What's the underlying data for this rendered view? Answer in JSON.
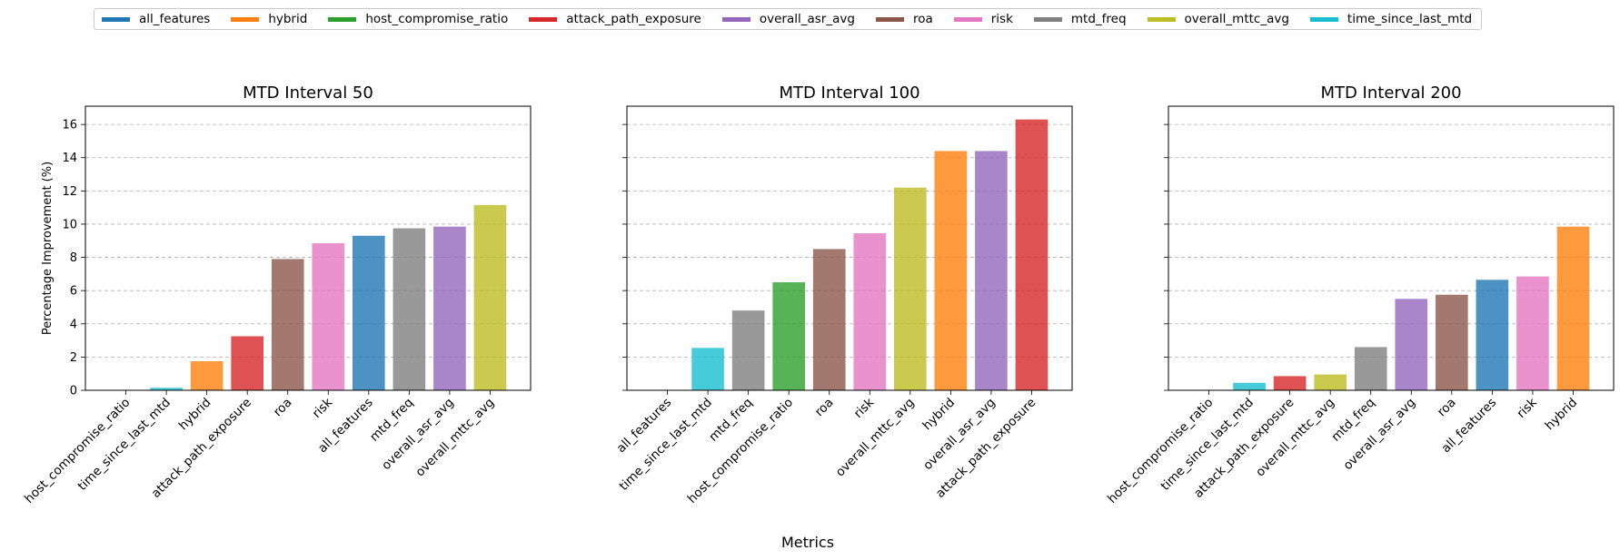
{
  "legend": {
    "items": [
      {
        "label": "all_features",
        "color": "#1f77b4"
      },
      {
        "label": "hybrid",
        "color": "#ff7f0e"
      },
      {
        "label": "host_compromise_ratio",
        "color": "#2ca02c"
      },
      {
        "label": "attack_path_exposure",
        "color": "#d62728"
      },
      {
        "label": "overall_asr_avg",
        "color": "#9467bd"
      },
      {
        "label": "roa",
        "color": "#8c564b"
      },
      {
        "label": "risk",
        "color": "#e377c2"
      },
      {
        "label": "mtd_freq",
        "color": "#7f7f7f"
      },
      {
        "label": "overall_mttc_avg",
        "color": "#bcbd22"
      },
      {
        "label": "time_since_last_mtd",
        "color": "#17becf"
      }
    ]
  },
  "chart_data": [
    {
      "type": "bar",
      "title": "MTD Interval 50",
      "ylabel": "Percentage Improvement (%)",
      "ylim": [
        0,
        17.1
      ],
      "yticks": [
        0,
        2,
        4,
        6,
        8,
        10,
        12,
        14,
        16
      ],
      "grid": "y-dashed",
      "categories": [
        "host_compromise_ratio",
        "time_since_last_mtd",
        "hybrid",
        "attack_path_exposure",
        "roa",
        "risk",
        "all_features",
        "mtd_freq",
        "overall_asr_avg",
        "overall_mttc_avg"
      ],
      "values": [
        0.0,
        0.15,
        1.75,
        3.25,
        7.9,
        8.85,
        9.3,
        9.75,
        9.85,
        11.15
      ]
    },
    {
      "type": "bar",
      "title": "MTD Interval 100",
      "ylim": [
        0,
        17.1
      ],
      "yticks": [
        0,
        2,
        4,
        6,
        8,
        10,
        12,
        14,
        16
      ],
      "grid": "y-dashed",
      "categories": [
        "all_features",
        "time_since_last_mtd",
        "mtd_freq",
        "host_compromise_ratio",
        "roa",
        "risk",
        "overall_mttc_avg",
        "hybrid",
        "overall_asr_avg",
        "attack_path_exposure"
      ],
      "values": [
        0.0,
        2.55,
        4.8,
        6.5,
        8.5,
        9.45,
        12.2,
        14.4,
        14.4,
        16.3
      ]
    },
    {
      "type": "bar",
      "title": "MTD Interval 200",
      "ylim": [
        0,
        17.1
      ],
      "yticks": [
        0,
        2,
        4,
        6,
        8,
        10,
        12,
        14,
        16
      ],
      "grid": "y-dashed",
      "categories": [
        "host_compromise_ratio",
        "time_since_last_mtd",
        "attack_path_exposure",
        "overall_mttc_avg",
        "mtd_freq",
        "overall_asr_avg",
        "roa",
        "all_features",
        "risk",
        "hybrid"
      ],
      "values": [
        0.0,
        0.45,
        0.85,
        0.95,
        2.6,
        5.5,
        5.75,
        6.65,
        6.85,
        9.85
      ]
    }
  ],
  "xlabel": "Metrics"
}
